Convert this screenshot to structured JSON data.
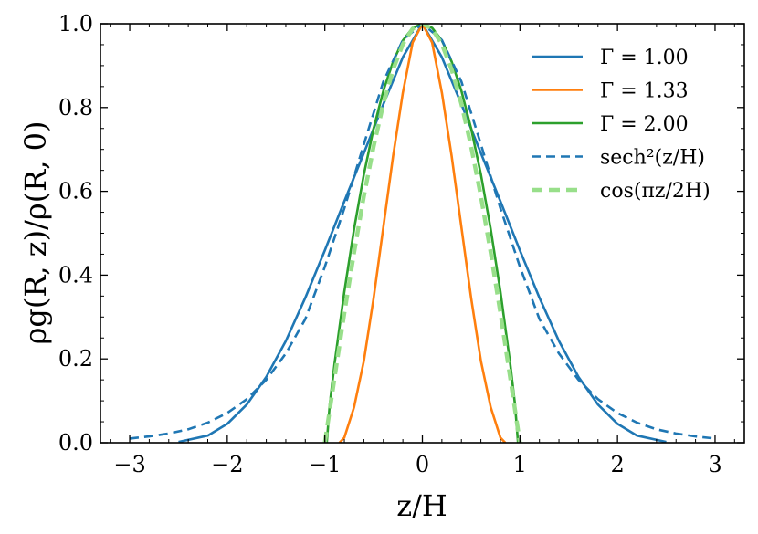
{
  "chart_data": {
    "type": "line",
    "xlabel": "z/H",
    "ylabel": "ρg(R, z)/ρ(R, 0)",
    "xlim": [
      -3.3,
      3.3
    ],
    "ylim": [
      0.0,
      1.0
    ],
    "xticks": [
      -3,
      -2,
      -1,
      0,
      1,
      2,
      3
    ],
    "xtick_labels": [
      "−3",
      "−2",
      "−1",
      "0",
      "1",
      "2",
      "3"
    ],
    "yticks": [
      0.0,
      0.2,
      0.4,
      0.6,
      0.8,
      1.0
    ],
    "ytick_labels": [
      "0.0",
      "0.2",
      "0.4",
      "0.6",
      "0.8",
      "1.0"
    ],
    "grid": false,
    "legend_position": "top-right",
    "series": [
      {
        "name": "Γ = 1.00",
        "color": "#1f77b4",
        "style": "solid",
        "x": [
          -2.5,
          -2.2,
          -2.0,
          -1.8,
          -1.6,
          -1.4,
          -1.2,
          -1.0,
          -0.8,
          -0.6,
          -0.4,
          -0.2,
          0.0,
          0.2,
          0.4,
          0.6,
          0.8,
          1.0,
          1.2,
          1.4,
          1.6,
          1.8,
          2.0,
          2.2,
          2.5
        ],
        "y": [
          0.002,
          0.017,
          0.045,
          0.091,
          0.157,
          0.243,
          0.346,
          0.459,
          0.576,
          0.691,
          0.808,
          0.92,
          1.0,
          0.92,
          0.808,
          0.691,
          0.576,
          0.459,
          0.346,
          0.243,
          0.157,
          0.091,
          0.045,
          0.017,
          0.002
        ]
      },
      {
        "name": "Γ = 1.33",
        "color": "#ff7f0e",
        "style": "solid",
        "x": [
          -0.85,
          -0.8,
          -0.7,
          -0.6,
          -0.5,
          -0.4,
          -0.3,
          -0.2,
          -0.1,
          0.0,
          0.1,
          0.2,
          0.3,
          0.4,
          0.5,
          0.6,
          0.7,
          0.8,
          0.85
        ],
        "y": [
          0.0,
          0.012,
          0.085,
          0.195,
          0.345,
          0.515,
          0.685,
          0.835,
          0.955,
          1.0,
          0.955,
          0.835,
          0.685,
          0.515,
          0.345,
          0.195,
          0.085,
          0.012,
          0.0
        ]
      },
      {
        "name": "Γ = 2.00",
        "color": "#2ca02c",
        "style": "solid",
        "x": [
          -0.98,
          -0.95,
          -0.9,
          -0.8,
          -0.7,
          -0.6,
          -0.5,
          -0.4,
          -0.3,
          -0.2,
          -0.1,
          0.0,
          0.1,
          0.2,
          0.3,
          0.4,
          0.5,
          0.6,
          0.7,
          0.8,
          0.9,
          0.95,
          0.98
        ],
        "y": [
          0.0,
          0.09,
          0.19,
          0.36,
          0.51,
          0.64,
          0.75,
          0.84,
          0.91,
          0.96,
          0.99,
          1.0,
          0.99,
          0.96,
          0.91,
          0.84,
          0.75,
          0.64,
          0.51,
          0.36,
          0.19,
          0.09,
          0.0
        ]
      },
      {
        "name": "sech²(z/H)",
        "color": "#1f77b4",
        "style": "dashed",
        "x": [
          -3.0,
          -2.8,
          -2.6,
          -2.4,
          -2.2,
          -2.0,
          -1.8,
          -1.6,
          -1.4,
          -1.2,
          -1.0,
          -0.8,
          -0.6,
          -0.4,
          -0.2,
          0.0,
          0.2,
          0.4,
          0.6,
          0.8,
          1.0,
          1.2,
          1.4,
          1.6,
          1.8,
          2.0,
          2.2,
          2.4,
          2.6,
          2.8,
          3.0
        ],
        "y": [
          0.01,
          0.015,
          0.022,
          0.032,
          0.048,
          0.071,
          0.104,
          0.15,
          0.213,
          0.295,
          0.42,
          0.559,
          0.712,
          0.862,
          0.961,
          1.0,
          0.961,
          0.862,
          0.712,
          0.559,
          0.42,
          0.295,
          0.213,
          0.15,
          0.104,
          0.071,
          0.048,
          0.032,
          0.022,
          0.015,
          0.01
        ]
      },
      {
        "name": "cos(πz/2H)",
        "color": "#98df8a",
        "style": "dashed",
        "x": [
          -1.0,
          -0.9,
          -0.8,
          -0.7,
          -0.6,
          -0.5,
          -0.4,
          -0.3,
          -0.2,
          -0.1,
          0.0,
          0.1,
          0.2,
          0.3,
          0.4,
          0.5,
          0.6,
          0.7,
          0.8,
          0.9,
          1.0
        ],
        "y": [
          0.0,
          0.156,
          0.309,
          0.454,
          0.588,
          0.707,
          0.809,
          0.891,
          0.951,
          0.988,
          1.0,
          0.988,
          0.951,
          0.891,
          0.809,
          0.707,
          0.588,
          0.454,
          0.309,
          0.156,
          0.0
        ]
      }
    ]
  }
}
